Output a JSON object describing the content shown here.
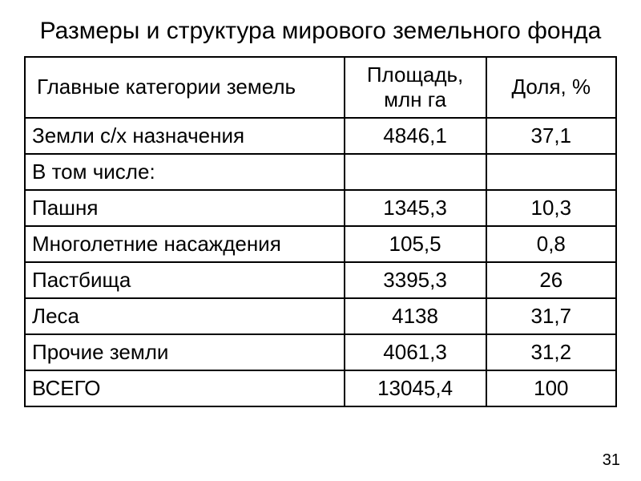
{
  "title": "Размеры и структура мирового земельного фонда",
  "page_number": "31",
  "table": {
    "type": "table",
    "border_color": "#000000",
    "background_color": "#ffffff",
    "text_color": "#000000",
    "header_fontsize": 26,
    "cell_fontsize": 26,
    "columns": [
      {
        "label": "Главные категории земель",
        "width_pct": 54,
        "align": "left"
      },
      {
        "label": "Площадь, млн га",
        "width_pct": 24,
        "align": "center"
      },
      {
        "label": "Доля, %",
        "width_pct": 22,
        "align": "center"
      }
    ],
    "rows": [
      {
        "label": "Земли с/х назначения",
        "area": "4846,1",
        "share": "37,1"
      },
      {
        "label": "В том числе:",
        "area": "",
        "share": ""
      },
      {
        "label": "Пашня",
        "area": "1345,3",
        "share": "10,3"
      },
      {
        "label": "Многолетние насаждения",
        "area": "105,5",
        "share": "0,8"
      },
      {
        "label": "Пастбища",
        "area": "3395,3",
        "share": "26"
      },
      {
        "label": "Леса",
        "area": "4138",
        "share": "31,7"
      },
      {
        "label": "Прочие земли",
        "area": "4061,3",
        "share": "31,2"
      },
      {
        "label": "ВСЕГО",
        "area": "13045,4",
        "share": "100"
      }
    ]
  }
}
